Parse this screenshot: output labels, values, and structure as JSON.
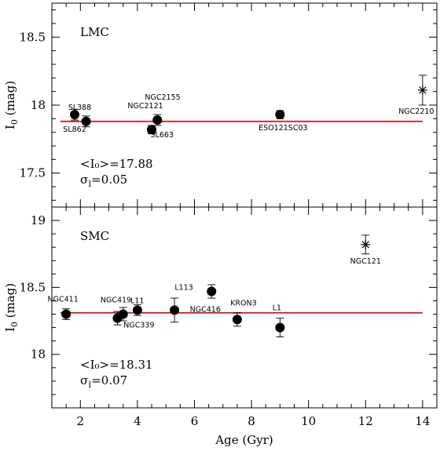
{
  "chart_data": [
    {
      "type": "scatter",
      "panel_label": "LMC",
      "ylabel": "I_0 (mag)",
      "ylim": [
        18.75,
        17.25
      ],
      "yticks": [
        "17.5",
        "18",
        "18.5"
      ],
      "xlim": [
        1,
        14.5
      ],
      "mean_text": "<I₀>=17.88",
      "sigma_text": "σI=0.05",
      "mean_value": 17.88,
      "mean_color": "#d0202a",
      "points": [
        {
          "label": "SL862",
          "x": 1.8,
          "y": 17.93,
          "err": 0.04,
          "marker": "circle"
        },
        {
          "label": "SL388",
          "x": 2.2,
          "y": 17.88,
          "err": 0.04,
          "marker": "circle"
        },
        {
          "label": "NGC2121",
          "x": 4.5,
          "y": 17.82,
          "err": 0.03,
          "marker": "circle"
        },
        {
          "label": "NGC2155",
          "x": 4.5,
          "y": 17.82,
          "err": 0.03,
          "marker": "circle"
        },
        {
          "label": "SL663",
          "x": 4.7,
          "y": 17.89,
          "err": 0.04,
          "marker": "circle"
        },
        {
          "label": "ESO121SC03",
          "x": 9.0,
          "y": 17.93,
          "err": 0.03,
          "marker": "circle"
        },
        {
          "label": "NGC2210",
          "x": 14.0,
          "y": 18.11,
          "err": 0.11,
          "marker": "star"
        }
      ]
    },
    {
      "type": "scatter",
      "panel_label": "SMC",
      "xlabel": "Age (Gyr)",
      "ylabel": "I_0 (mag)",
      "ylim": [
        19.1,
        17.6
      ],
      "yticks": [
        "18",
        "18.5",
        "19"
      ],
      "xlim": [
        1,
        14.5
      ],
      "xticks": [
        "2",
        "4",
        "6",
        "8",
        "10",
        "12",
        "14"
      ],
      "mean_text": "<I₀>=18.31",
      "sigma_text": "σI=0.07",
      "mean_value": 18.31,
      "mean_color": "#d0202a",
      "points": [
        {
          "label": "NGC411",
          "x": 1.5,
          "y": 18.3,
          "err": 0.04,
          "marker": "circle"
        },
        {
          "label": "NGC419",
          "x": 3.3,
          "y": 18.27,
          "err": 0.05,
          "marker": "circle"
        },
        {
          "label": "L11",
          "x": 3.5,
          "y": 18.3,
          "err": 0.05,
          "marker": "circle"
        },
        {
          "label": "NGC339",
          "x": 4.0,
          "y": 18.33,
          "err": 0.04,
          "marker": "circle"
        },
        {
          "label": "L113",
          "x": 5.3,
          "y": 18.33,
          "err": 0.09,
          "marker": "circle"
        },
        {
          "label": "NGC416",
          "x": 6.6,
          "y": 18.47,
          "err": 0.05,
          "marker": "circle"
        },
        {
          "label": "KRON3",
          "x": 7.5,
          "y": 18.26,
          "err": 0.05,
          "marker": "circle"
        },
        {
          "label": "L1",
          "x": 9.0,
          "y": 18.2,
          "err": 0.07,
          "marker": "circle"
        },
        {
          "label": "NGC121",
          "x": 12.0,
          "y": 18.82,
          "err": 0.07,
          "marker": "star"
        }
      ]
    }
  ]
}
